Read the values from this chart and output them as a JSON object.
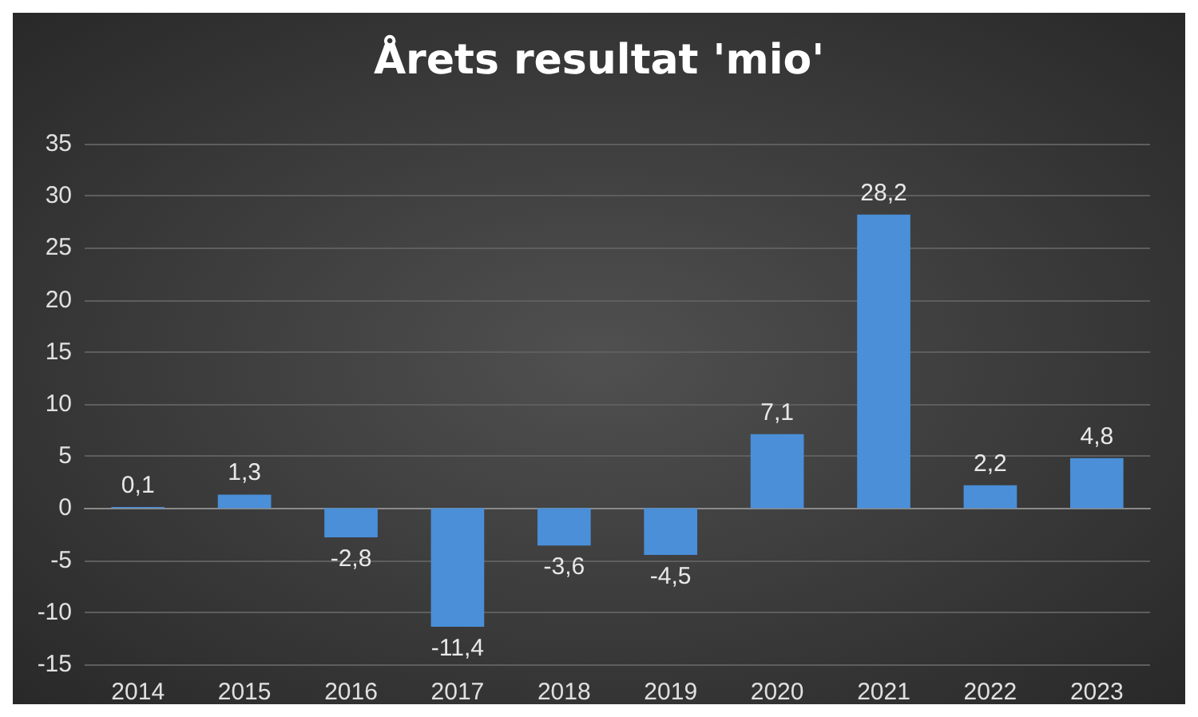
{
  "chart_data": {
    "type": "bar",
    "title": "Årets resultat 'mio'",
    "categories": [
      "2014",
      "2015",
      "2016",
      "2017",
      "2018",
      "2019",
      "2020",
      "2021",
      "2022",
      "2023"
    ],
    "values": [
      0.1,
      1.3,
      -2.8,
      -11.4,
      -3.6,
      -4.5,
      7.1,
      28.2,
      2.2,
      4.8
    ],
    "value_labels": [
      "0,1",
      "1,3",
      "-2,8",
      "-11,4",
      "-3,6",
      "-4,5",
      "7,1",
      "28,2",
      "2,2",
      "4,8"
    ],
    "color": "#4a8fd8",
    "ylim": [
      -15,
      35
    ],
    "yticks": [
      -15,
      -10,
      -5,
      0,
      5,
      10,
      15,
      20,
      25,
      30,
      35
    ],
    "grid": "y"
  }
}
